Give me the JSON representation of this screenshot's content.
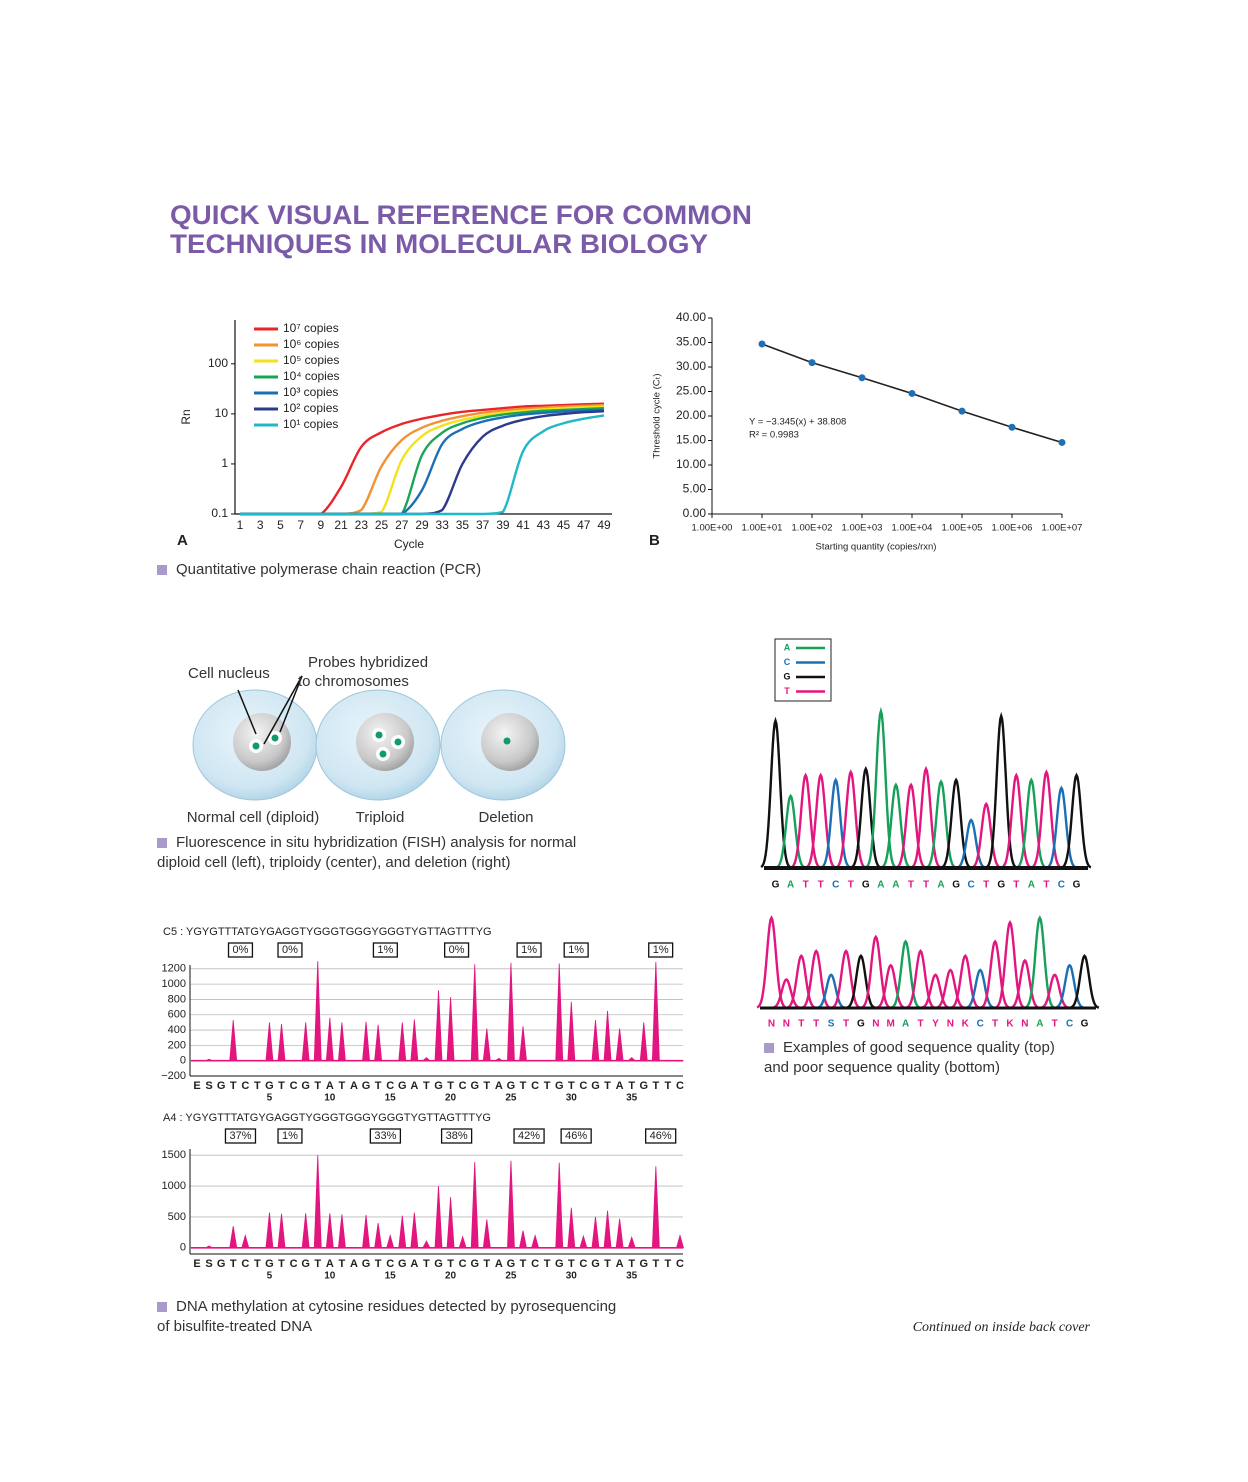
{
  "title": [
    "QUICK VISUAL REFERENCE FOR COMMON",
    "TECHNIQUES IN MOLECULAR BIOLOGY"
  ],
  "captions": {
    "pcr": [
      "Quantitative polymerase chain reaction (PCR)"
    ],
    "fish": [
      "Fluorescence in situ hybridization (FISH) analysis for normal",
      "diploid cell (left), triploidy (center), and deletion (right)"
    ],
    "sequencing": [
      "Examples of good sequence quality (top)",
      "and poor sequence quality (bottom)"
    ],
    "methylation": [
      "DNA methylation at cytosine residues detected by pyrosequencing",
      "of bisulfite-treated DNA"
    ]
  },
  "fish": {
    "nucleus": "Cell nucleus",
    "probes": [
      "Probes hybridized",
      "to chromosomes"
    ],
    "cells": [
      "Normal cell (diploid)",
      "Triploid",
      "Deletion"
    ]
  },
  "footer": "Continued on inside back cover",
  "chart_data": [
    {
      "type": "line",
      "panel": "A",
      "x_label": "Cycle",
      "y_label": "Rn",
      "log_y": true,
      "categories": [
        "1",
        "3",
        "5",
        "7",
        "9",
        "21",
        "23",
        "25",
        "27",
        "29",
        "33",
        "35",
        "37",
        "39",
        "41",
        "43",
        "45",
        "47",
        "49"
      ],
      "ylim": [
        0.1,
        750
      ],
      "yticks": [
        0.1,
        1,
        10,
        100
      ],
      "series": [
        {
          "name": "10⁷ copies",
          "color": "#e8262a",
          "values": [
            0.1,
            0.1,
            0.1,
            0.1,
            0.1,
            0.35,
            2.2,
            4.3,
            6.3,
            8,
            9.6,
            11,
            12,
            13,
            14,
            14.5,
            15,
            15.5,
            16
          ]
        },
        {
          "name": "10⁶ copies",
          "color": "#f39233",
          "values": [
            0.1,
            0.1,
            0.1,
            0.1,
            0.1,
            0.1,
            0.12,
            0.9,
            3,
            5.3,
            7.3,
            9,
            10.5,
            11.7,
            12.6,
            13.3,
            14,
            14.5,
            15
          ]
        },
        {
          "name": "10⁵ copies",
          "color": "#f2e21c",
          "values": [
            0.1,
            0.1,
            0.1,
            0.1,
            0.1,
            0.1,
            0.1,
            0.11,
            1.2,
            3.6,
            5.8,
            7.6,
            9.2,
            10.5,
            11.5,
            12.3,
            13,
            13.5,
            14
          ]
        },
        {
          "name": "10⁴ copies",
          "color": "#1aa553",
          "values": [
            0.1,
            0.1,
            0.1,
            0.1,
            0.1,
            0.1,
            0.1,
            0.1,
            0.1,
            1.5,
            4.2,
            6.5,
            8.3,
            9.7,
            10.7,
            11.5,
            12,
            12.5,
            13
          ]
        },
        {
          "name": "10³ copies",
          "color": "#1b6fb5",
          "values": [
            0.1,
            0.1,
            0.1,
            0.1,
            0.1,
            0.1,
            0.1,
            0.1,
            0.1,
            0.3,
            2.5,
            5,
            7,
            8.5,
            9.7,
            10.5,
            11.2,
            11.7,
            12
          ]
        },
        {
          "name": "10² copies",
          "color": "#2e3a8c",
          "values": [
            0.1,
            0.1,
            0.1,
            0.1,
            0.1,
            0.1,
            0.1,
            0.1,
            0.1,
            0.1,
            0.12,
            1,
            3.5,
            5.8,
            7.6,
            9,
            10,
            10.8,
            11.3
          ]
        },
        {
          "name": "10¹ copies",
          "color": "#1fb8c6",
          "values": [
            0.1,
            0.1,
            0.1,
            0.1,
            0.1,
            0.1,
            0.1,
            0.1,
            0.1,
            0.1,
            0.1,
            0.1,
            0.1,
            0.11,
            1.8,
            4.5,
            6.5,
            8,
            9.3
          ]
        }
      ]
    },
    {
      "type": "scatter",
      "panel": "B",
      "x_label": "Starting quantity (copies/rxn)",
      "y_label": "Threshold cycle (Cₜ)",
      "log_x": true,
      "color": "#1f6fb5",
      "line_color": "#222222",
      "x": [
        10,
        100,
        1000,
        10000,
        100000,
        1000000,
        10000000
      ],
      "values": [
        34.7,
        30.9,
        27.8,
        24.6,
        21.0,
        17.7,
        14.6
      ],
      "xlim": [
        1,
        10000000
      ],
      "xticks": [
        {
          "value": 1,
          "label": "1.00E+00"
        },
        {
          "value": 10,
          "label": "1.00E+01"
        },
        {
          "value": 100,
          "label": "1.00E+02"
        },
        {
          "value": 1000,
          "label": "1.00E+03"
        },
        {
          "value": 10000,
          "label": "1.00E+04"
        },
        {
          "value": 100000,
          "label": "1.00E+05"
        },
        {
          "value": 1000000,
          "label": "1.00E+06"
        },
        {
          "value": 10000000,
          "label": "1.00E+07"
        }
      ],
      "ylim": [
        0,
        40
      ],
      "yticks": [
        {
          "value": 0,
          "label": "0.00"
        },
        {
          "value": 5,
          "label": "5.00"
        },
        {
          "value": 10,
          "label": "10.00"
        },
        {
          "value": 15,
          "label": "15.00"
        },
        {
          "value": 20,
          "label": "20.00"
        },
        {
          "value": 25,
          "label": "25.00"
        },
        {
          "value": 30,
          "label": "30.00"
        },
        {
          "value": 35,
          "label": "35.00"
        },
        {
          "value": 40,
          "label": "40.00"
        }
      ],
      "annotation": [
        "Y = −3.345(x) + 38.808",
        "R² = 0.9983"
      ]
    },
    {
      "type": "chromatogram",
      "legend": [
        "A",
        "C",
        "G",
        "T"
      ],
      "base_colors": {
        "A": "#16a05a",
        "C": "#1b6fb5",
        "G": "#111111",
        "T": "#e3157f",
        "N": "#e3157f",
        "S": "#1b6fb5",
        "M": "#e3157f",
        "Y": "#e3157f",
        "K": "#e3157f"
      },
      "categories": [
        "G",
        "A",
        "T",
        "T",
        "C",
        "T",
        "G",
        "A",
        "A",
        "T",
        "T",
        "A",
        "G",
        "C",
        "T",
        "G",
        "T",
        "A",
        "T",
        "C",
        "G"
      ],
      "values": [
        92,
        45,
        58,
        58,
        55,
        60,
        62,
        98,
        52,
        52,
        62,
        54,
        55,
        30,
        40,
        95,
        58,
        55,
        60,
        50,
        58
      ]
    },
    {
      "type": "chromatogram",
      "base_colors": {
        "A": "#16a05a",
        "C": "#1b6fb5",
        "G": "#111111",
        "T": "#e3157f",
        "N": "#e3157f",
        "S": "#1b6fb5",
        "M": "#e3157f",
        "Y": "#e3157f",
        "K": "#e3157f"
      },
      "categories": [
        "N",
        "N",
        "T",
        "T",
        "S",
        "T",
        "G",
        "N",
        "M",
        "A",
        "T",
        "Y",
        "N",
        "K",
        "C",
        "T",
        "K",
        "N",
        "A",
        "T",
        "C",
        "G"
      ],
      "values": [
        95,
        30,
        55,
        60,
        35,
        60,
        55,
        75,
        45,
        70,
        60,
        35,
        40,
        55,
        40,
        70,
        90,
        50,
        95,
        35,
        45,
        55
      ]
    },
    {
      "type": "pyrogram",
      "title": "C5 : YGYGTTTATGYGAGGTYGGGTGGGYGGGTYGTTAGTTTYG",
      "color": "#e3157f",
      "categories": [
        "E",
        "S",
        "G",
        "T",
        "C",
        "T",
        "G",
        "T",
        "C",
        "G",
        "T",
        "A",
        "T",
        "A",
        "G",
        "T",
        "C",
        "G",
        "A",
        "T",
        "G",
        "T",
        "C",
        "G",
        "T",
        "A",
        "G",
        "T",
        "C",
        "T",
        "G",
        "T",
        "C",
        "G",
        "T",
        "A",
        "T",
        "G",
        "T",
        "T",
        "C"
      ],
      "values": [
        0,
        20,
        0,
        530,
        0,
        0,
        500,
        480,
        0,
        500,
        1300,
        560,
        500,
        0,
        510,
        470,
        0,
        500,
        540,
        40,
        920,
        830,
        0,
        1260,
        420,
        30,
        1280,
        450,
        0,
        0,
        1270,
        770,
        0,
        530,
        650,
        420,
        40,
        500,
        1290,
        0,
        0
      ],
      "ylim": [
        -200,
        1250
      ],
      "yticks": [
        {
          "value": -200,
          "label": "−200"
        },
        0,
        200,
        400,
        600,
        800,
        1000,
        1200
      ],
      "xticks": [
        5,
        10,
        15,
        20,
        25,
        30,
        35
      ],
      "annotations": [
        {
          "label": "0%",
          "at": 3.6
        },
        {
          "label": "0%",
          "at": 7.7
        },
        {
          "label": "1%",
          "at": 15.6
        },
        {
          "label": "0%",
          "at": 21.5
        },
        {
          "label": "1%",
          "at": 27.5
        },
        {
          "label": "1%",
          "at": 31.4
        },
        {
          "label": "1%",
          "at": 38.4
        }
      ]
    },
    {
      "type": "pyrogram",
      "title": "A4 : YGYGTTTATGYGAGGTYGGGTGGGYGGGTYGTTAGTTTYG",
      "color": "#e3157f",
      "categories": [
        "E",
        "S",
        "G",
        "T",
        "C",
        "T",
        "G",
        "T",
        "C",
        "G",
        "T",
        "A",
        "T",
        "A",
        "G",
        "T",
        "C",
        "G",
        "A",
        "T",
        "G",
        "T",
        "C",
        "G",
        "T",
        "A",
        "G",
        "T",
        "C",
        "T",
        "G",
        "T",
        "C",
        "G",
        "T",
        "A",
        "T",
        "G",
        "T",
        "T",
        "C"
      ],
      "values": [
        0,
        30,
        0,
        350,
        200,
        0,
        570,
        550,
        0,
        560,
        1500,
        560,
        540,
        0,
        530,
        400,
        200,
        520,
        570,
        110,
        1000,
        820,
        180,
        1390,
        460,
        0,
        1410,
        280,
        200,
        0,
        1380,
        650,
        190,
        500,
        600,
        470,
        170,
        0,
        1320,
        0,
        200
      ],
      "ylim": [
        -100,
        1600
      ],
      "yticks": [
        0,
        500,
        1000,
        1500
      ],
      "xticks": [
        5,
        10,
        15,
        20,
        25,
        30,
        35
      ],
      "annotations": [
        {
          "label": "37%",
          "at": 3.6
        },
        {
          "label": "1%",
          "at": 7.7
        },
        {
          "label": "33%",
          "at": 15.6
        },
        {
          "label": "38%",
          "at": 21.5
        },
        {
          "label": "42%",
          "at": 27.5
        },
        {
          "label": "46%",
          "at": 31.4
        },
        {
          "label": "46%",
          "at": 38.4
        }
      ]
    }
  ]
}
